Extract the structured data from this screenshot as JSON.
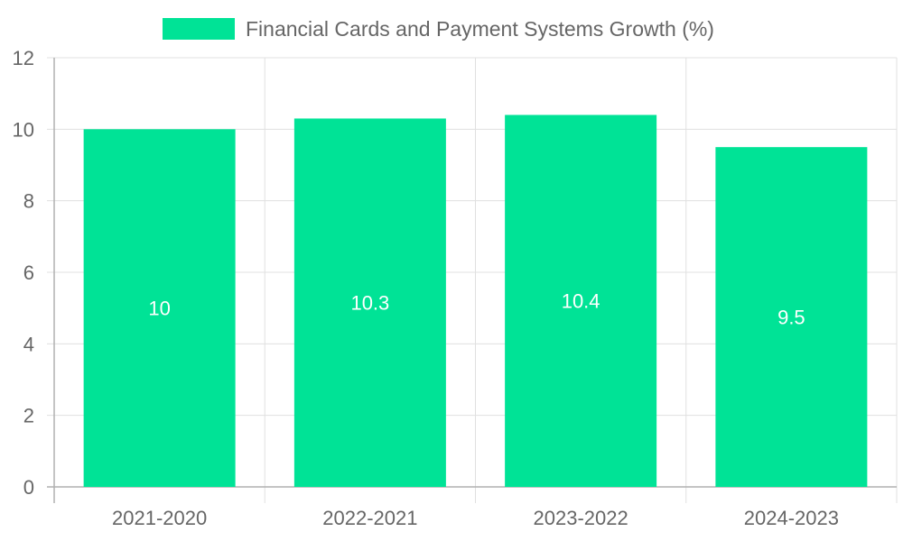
{
  "chart_data": {
    "type": "bar",
    "categories": [
      "2021-2020",
      "2022-2021",
      "2023-2022",
      "2024-2023"
    ],
    "series": [
      {
        "name": "Financial Cards and Payment Systems Growth (%)",
        "values": [
          10,
          10.3,
          10.4,
          9.5
        ]
      }
    ],
    "data_labels": [
      "10",
      "10.3",
      "10.4",
      "9.5"
    ],
    "ylim": [
      0,
      12
    ],
    "yticks": [
      "0",
      "2",
      "4",
      "6",
      "8",
      "10",
      "12"
    ],
    "ytick_values": [
      0,
      2,
      4,
      6,
      8,
      10,
      12
    ],
    "grid": true,
    "legend_position": "top-center",
    "title": "",
    "xlabel": "",
    "ylabel": ""
  },
  "colors": {
    "bar": "#00e396",
    "grid": "#e0e0e0",
    "axis": "#b0b0b0",
    "tick_text": "#666666",
    "data_label": "#ffffff"
  }
}
